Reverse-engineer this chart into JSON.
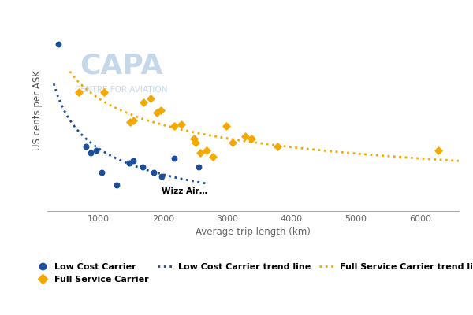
{
  "lcc_points": [
    [
      370,
      10.8
    ],
    [
      800,
      5.7
    ],
    [
      870,
      5.4
    ],
    [
      960,
      5.5
    ],
    [
      1050,
      4.4
    ],
    [
      1280,
      3.8
    ],
    [
      1480,
      4.9
    ],
    [
      1540,
      5.0
    ],
    [
      1680,
      4.7
    ],
    [
      1850,
      4.4
    ],
    [
      1980,
      4.2
    ],
    [
      2180,
      5.1
    ],
    [
      2550,
      4.7
    ]
  ],
  "fsc_points": [
    [
      690,
      8.4
    ],
    [
      1080,
      8.4
    ],
    [
      1490,
      6.9
    ],
    [
      1540,
      7.0
    ],
    [
      1700,
      7.9
    ],
    [
      1800,
      8.1
    ],
    [
      1900,
      7.4
    ],
    [
      1960,
      7.5
    ],
    [
      2180,
      6.7
    ],
    [
      2280,
      6.8
    ],
    [
      2480,
      6.1
    ],
    [
      2500,
      5.9
    ],
    [
      2580,
      5.4
    ],
    [
      2680,
      5.5
    ],
    [
      2780,
      5.2
    ],
    [
      2980,
      6.7
    ],
    [
      3080,
      5.9
    ],
    [
      3280,
      6.2
    ],
    [
      3380,
      6.1
    ],
    [
      3780,
      5.7
    ],
    [
      6280,
      5.5
    ]
  ],
  "wizz_air_x": 1900,
  "wizz_air_y": 3.3,
  "wizz_air_label": "Wizz Air…",
  "lcc_color": "#1b4f9b",
  "fsc_color": "#f5a800",
  "xlabel": "Average trip length (km)",
  "ylabel": "US cents per ASK",
  "xlim": [
    200,
    6600
  ],
  "ylim": [
    2.5,
    12.5
  ],
  "xticks": [
    1000,
    2000,
    3000,
    4000,
    5000,
    6000
  ],
  "legend_lcc": "Low Cost Carrier",
  "legend_fsc": "Full Service Carrier",
  "legend_lcc_trend": "Low Cost Carrier trend line",
  "legend_fsc_trend": "Full Service Carrier trend line",
  "watermark_capa": "CAPA",
  "watermark_sub": "CENTRE FOR AVIATION"
}
